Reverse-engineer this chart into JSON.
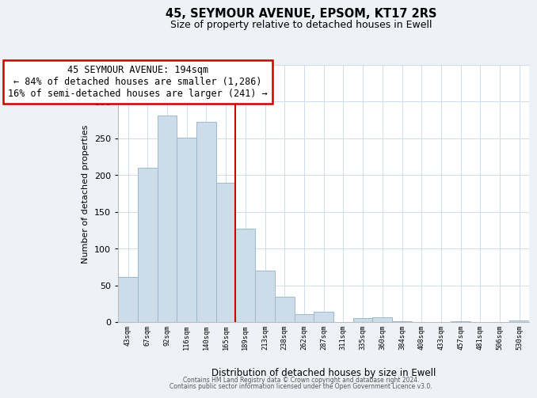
{
  "title": "45, SEYMOUR AVENUE, EPSOM, KT17 2RS",
  "subtitle": "Size of property relative to detached houses in Ewell",
  "xlabel": "Distribution of detached houses by size in Ewell",
  "ylabel": "Number of detached properties",
  "bar_labels": [
    "43sqm",
    "67sqm",
    "92sqm",
    "116sqm",
    "140sqm",
    "165sqm",
    "189sqm",
    "213sqm",
    "238sqm",
    "262sqm",
    "287sqm",
    "311sqm",
    "335sqm",
    "360sqm",
    "384sqm",
    "408sqm",
    "433sqm",
    "457sqm",
    "481sqm",
    "506sqm",
    "530sqm"
  ],
  "bar_values": [
    61,
    210,
    281,
    251,
    272,
    189,
    127,
    70,
    35,
    11,
    14,
    0,
    5,
    6,
    1,
    0,
    0,
    1,
    0,
    0,
    2
  ],
  "bar_color": "#ccdce8",
  "bar_edge_color": "#99bbcc",
  "annotation_title": "45 SEYMOUR AVENUE: 194sqm",
  "annotation_line1": "← 84% of detached houses are smaller (1,286)",
  "annotation_line2": "16% of semi-detached houses are larger (241) →",
  "annotation_box_color": "#ffffff",
  "annotation_box_edge": "#cc0000",
  "property_line_color": "#cc0000",
  "ylim": [
    0,
    350
  ],
  "yticks": [
    0,
    50,
    100,
    150,
    200,
    250,
    300,
    350
  ],
  "footer1": "Contains HM Land Registry data © Crown copyright and database right 2024.",
  "footer2": "Contains public sector information licensed under the Open Government Licence v3.0.",
  "background_color": "#eef2f6",
  "plot_background": "#ffffff",
  "grid_color": "#d0dce8"
}
